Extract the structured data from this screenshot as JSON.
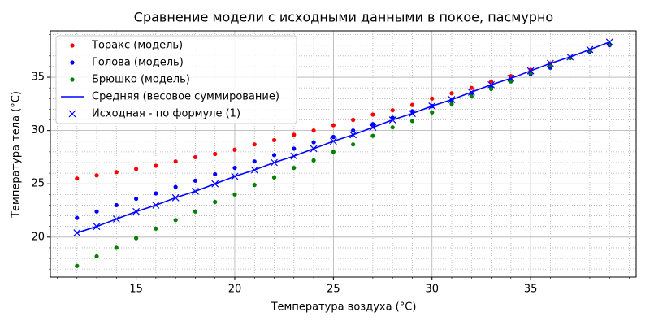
{
  "chart_data": {
    "type": "line",
    "title": "Сравнение модели с исходными данными в покое, пасмурно",
    "xlabel": "Температура воздуха (°C)",
    "ylabel": "Температура тела (°C)",
    "x": [
      12,
      13,
      14,
      15,
      16,
      17,
      18,
      19,
      20,
      21,
      22,
      23,
      24,
      25,
      26,
      27,
      28,
      29,
      30,
      31,
      32,
      33,
      34,
      35,
      36,
      37,
      38,
      39
    ],
    "series": [
      {
        "name": "Торакс (модель)",
        "color": "#ff0000",
        "marker": "dot",
        "line": false,
        "values": [
          25.5,
          25.8,
          26.1,
          26.4,
          26.7,
          27.1,
          27.5,
          27.8,
          28.2,
          28.7,
          29.1,
          29.6,
          30.0,
          30.5,
          31.0,
          31.5,
          31.9,
          32.4,
          33.0,
          33.5,
          34.0,
          34.6,
          35.1,
          35.7,
          36.3,
          36.8,
          37.4,
          38.0
        ]
      },
      {
        "name": "Голова (модель)",
        "color": "#0000ff",
        "marker": "dot",
        "line": false,
        "values": [
          21.8,
          22.4,
          23.0,
          23.6,
          24.1,
          24.7,
          25.3,
          25.9,
          26.5,
          27.1,
          27.7,
          28.3,
          28.9,
          29.4,
          30.0,
          30.6,
          31.2,
          31.8,
          32.3,
          32.9,
          33.5,
          34.1,
          34.7,
          35.3,
          35.9,
          36.8,
          37.4,
          38.0
        ]
      },
      {
        "name": "Брюшко (модель)",
        "color": "#008000",
        "marker": "dot",
        "line": false,
        "values": [
          17.3,
          18.2,
          19.0,
          19.9,
          20.8,
          21.6,
          22.4,
          23.3,
          24.0,
          24.9,
          25.6,
          26.5,
          27.2,
          28.0,
          28.7,
          29.5,
          30.3,
          30.9,
          31.7,
          32.5,
          33.2,
          33.9,
          34.6,
          35.4,
          36.1,
          36.8,
          37.5,
          38.1
        ]
      },
      {
        "name": "Средняя (весовое суммирование)",
        "color": "#0000ff",
        "marker": "none",
        "line": true,
        "values": [
          20.4,
          21.0,
          21.7,
          22.4,
          23.0,
          23.7,
          24.3,
          25.0,
          25.7,
          26.3,
          27.0,
          27.6,
          28.3,
          29.0,
          29.6,
          30.3,
          31.0,
          31.6,
          32.3,
          32.9,
          33.6,
          34.3,
          34.9,
          35.6,
          36.3,
          36.9,
          37.6,
          38.3
        ]
      },
      {
        "name": "Исходная - по формуле (1)",
        "color": "#0000ff",
        "marker": "x",
        "line": false,
        "values": [
          20.4,
          21.0,
          21.7,
          22.4,
          23.0,
          23.7,
          24.3,
          25.0,
          25.7,
          26.3,
          27.0,
          27.6,
          28.3,
          29.0,
          29.6,
          30.3,
          31.0,
          31.6,
          32.3,
          32.9,
          33.6,
          34.3,
          34.9,
          35.6,
          36.3,
          36.9,
          37.6,
          38.3
        ]
      }
    ],
    "xlim": [
      10.65,
      40.35
    ],
    "ylim": [
      16.25,
      39.35
    ],
    "xticks": [
      15,
      20,
      25,
      30,
      35
    ],
    "yticks": [
      20,
      25,
      30,
      35
    ],
    "xminorticks": [
      11,
      12,
      13,
      14,
      16,
      17,
      18,
      19,
      21,
      22,
      23,
      24,
      26,
      27,
      28,
      29,
      31,
      32,
      33,
      34,
      36,
      37,
      38,
      39,
      40
    ],
    "yminorticks": [
      17,
      18,
      19,
      21,
      22,
      23,
      24,
      26,
      27,
      28,
      29,
      31,
      32,
      33,
      34,
      36,
      37,
      38,
      39
    ],
    "grid": true,
    "legend": "upper left"
  }
}
